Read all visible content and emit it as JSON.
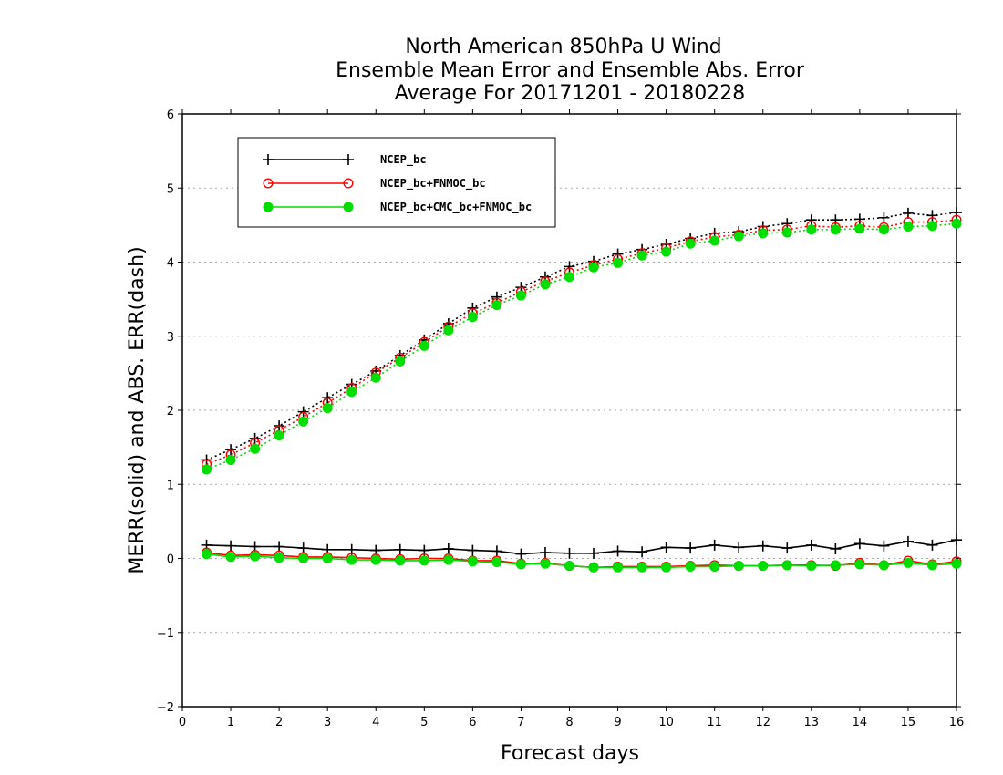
{
  "chart_data": {
    "type": "line",
    "title_lines": [
      "North American 850hPa U Wind",
      "Ensemble Mean Error and Ensemble Abs. Error",
      "Average For 20171201 - 20180228"
    ],
    "xlabel": "Forecast days",
    "ylabel": "MERR(solid) and ABS. ERR(dash)",
    "xlim": [
      0,
      16
    ],
    "ylim": [
      -2,
      6
    ],
    "xticks": [
      0,
      1,
      2,
      3,
      4,
      5,
      6,
      7,
      8,
      9,
      10,
      11,
      12,
      13,
      14,
      15,
      16
    ],
    "yticks": [
      -2,
      -1,
      0,
      1,
      2,
      3,
      4,
      5,
      6
    ],
    "grid": "horizontal dotted",
    "legend_position": "top-left",
    "x": [
      0.5,
      1,
      1.5,
      2,
      2.5,
      3,
      3.5,
      4,
      4.5,
      5,
      5.5,
      6,
      6.5,
      7,
      7.5,
      8,
      8.5,
      9,
      9.5,
      10,
      10.5,
      11,
      11.5,
      12,
      12.5,
      13,
      13.5,
      14,
      14.5,
      15,
      15.5,
      16
    ],
    "series": [
      {
        "name": "NCEP_bc",
        "color": "#000000",
        "marker": "plus",
        "merr": [
          0.18,
          0.17,
          0.16,
          0.16,
          0.14,
          0.12,
          0.12,
          0.11,
          0.12,
          0.11,
          0.13,
          0.11,
          0.1,
          0.06,
          0.08,
          0.07,
          0.07,
          0.1,
          0.09,
          0.15,
          0.14,
          0.18,
          0.15,
          0.17,
          0.14,
          0.18,
          0.13,
          0.2,
          0.17,
          0.23,
          0.18,
          0.25
        ],
        "abs_err": [
          1.33,
          1.47,
          1.62,
          1.79,
          1.98,
          2.17,
          2.35,
          2.53,
          2.74,
          2.95,
          3.17,
          3.38,
          3.53,
          3.66,
          3.8,
          3.94,
          4.01,
          4.11,
          4.17,
          4.24,
          4.32,
          4.39,
          4.41,
          4.48,
          4.52,
          4.57,
          4.57,
          4.58,
          4.6,
          4.66,
          4.63,
          4.67
        ]
      },
      {
        "name": "NCEP_bc+FNMOC_bc",
        "color": "#ff0000",
        "marker": "open-circle",
        "merr": [
          0.08,
          0.04,
          0.05,
          0.04,
          0.02,
          0.02,
          0.01,
          0.0,
          -0.01,
          0.0,
          0.0,
          -0.03,
          -0.03,
          -0.07,
          -0.06,
          -0.1,
          -0.12,
          -0.11,
          -0.11,
          -0.11,
          -0.1,
          -0.09,
          -0.1,
          -0.1,
          -0.09,
          -0.09,
          -0.1,
          -0.06,
          -0.09,
          -0.03,
          -0.08,
          -0.04
        ],
        "abs_err": [
          1.27,
          1.4,
          1.56,
          1.73,
          1.91,
          2.1,
          2.3,
          2.51,
          2.71,
          2.92,
          3.13,
          3.31,
          3.45,
          3.6,
          3.74,
          3.86,
          3.96,
          4.04,
          4.12,
          4.19,
          4.28,
          4.34,
          4.37,
          4.43,
          4.44,
          4.49,
          4.47,
          4.49,
          4.47,
          4.54,
          4.54,
          4.57
        ]
      },
      {
        "name": "NCEP_bc+CMC_bc+FNMOC_bc",
        "color": "#00dd00",
        "marker": "filled-circle",
        "merr": [
          0.06,
          0.02,
          0.03,
          0.01,
          0.0,
          0.0,
          -0.02,
          -0.02,
          -0.03,
          -0.03,
          -0.02,
          -0.04,
          -0.05,
          -0.08,
          -0.07,
          -0.1,
          -0.12,
          -0.12,
          -0.12,
          -0.12,
          -0.11,
          -0.11,
          -0.1,
          -0.1,
          -0.09,
          -0.1,
          -0.09,
          -0.08,
          -0.09,
          -0.06,
          -0.09,
          -0.07
        ],
        "abs_err": [
          1.2,
          1.33,
          1.48,
          1.66,
          1.85,
          2.03,
          2.25,
          2.44,
          2.66,
          2.87,
          3.08,
          3.26,
          3.42,
          3.55,
          3.7,
          3.8,
          3.93,
          3.99,
          4.09,
          4.14,
          4.25,
          4.29,
          4.35,
          4.39,
          4.4,
          4.44,
          4.44,
          4.45,
          4.44,
          4.48,
          4.49,
          4.52
        ]
      }
    ]
  }
}
